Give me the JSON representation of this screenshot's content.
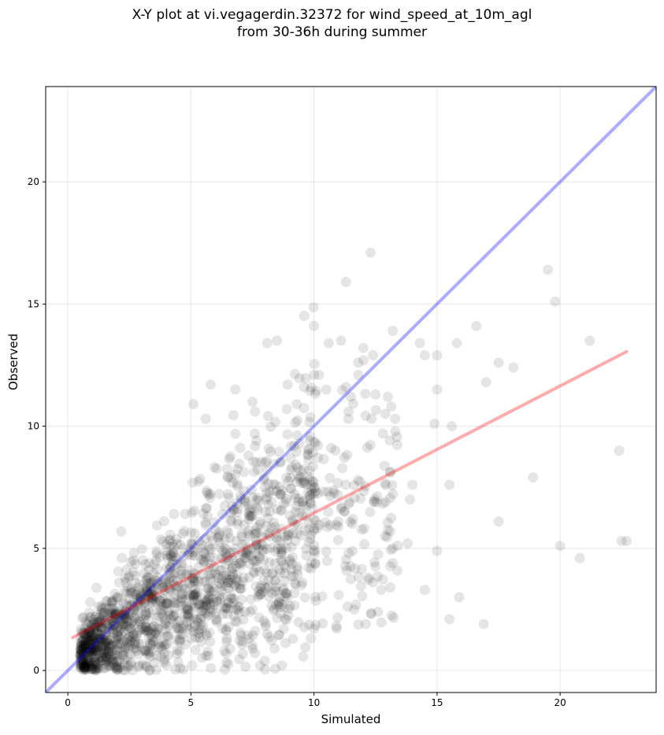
{
  "chart_data": {
    "type": "scatter",
    "title": "X-Y plot at vi.vegagerdin.32372 for wind_speed_at_10m_agl",
    "subtitle": "from 30-36h during summer",
    "xlabel": "Simulated",
    "ylabel": "Observed",
    "xlim": [
      -0.9,
      23.9
    ],
    "ylim": [
      -0.9,
      23.9
    ],
    "x_ticks": [
      0,
      5,
      10,
      15,
      20
    ],
    "y_ticks": [
      0,
      5,
      10,
      15,
      20
    ],
    "grid": true,
    "point_color": "#000000",
    "point_alpha": 0.1,
    "identity_line": {
      "color": "#0000ff",
      "alpha": 0.33,
      "from": [
        -0.9,
        -0.9
      ],
      "to": [
        23.9,
        23.9
      ]
    },
    "regression_line": {
      "color": "#ff0000",
      "alpha": 0.33,
      "from": [
        0.2,
        1.35
      ],
      "to": [
        22.7,
        13.05
      ]
    },
    "outlier_points": [
      [
        12.3,
        17.1
      ],
      [
        11.3,
        15.9
      ],
      [
        19.5,
        16.4
      ],
      [
        19.8,
        15.1
      ],
      [
        10.0,
        14.1
      ],
      [
        16.6,
        14.1
      ],
      [
        8.5,
        13.5
      ],
      [
        8.1,
        13.4
      ],
      [
        11.1,
        13.5
      ],
      [
        10.6,
        13.4
      ],
      [
        14.3,
        13.4
      ],
      [
        15.8,
        13.4
      ],
      [
        13.2,
        13.9
      ],
      [
        21.2,
        13.5
      ],
      [
        12.0,
        13.2
      ],
      [
        12.4,
        12.9
      ],
      [
        14.5,
        12.9
      ],
      [
        15.0,
        12.9
      ],
      [
        17.5,
        12.6
      ],
      [
        18.1,
        12.4
      ],
      [
        11.8,
        12.6
      ],
      [
        11.8,
        12.1
      ],
      [
        10.0,
        12.1
      ],
      [
        10.2,
        12.1
      ],
      [
        6.8,
        11.5
      ],
      [
        5.8,
        11.7
      ],
      [
        17.0,
        11.8
      ],
      [
        11.3,
        11.6
      ],
      [
        11.5,
        11.2
      ],
      [
        12.5,
        11.3
      ],
      [
        13.0,
        11.2
      ],
      [
        15.0,
        11.5
      ],
      [
        10.5,
        11.5
      ],
      [
        5.1,
        10.9
      ],
      [
        7.5,
        11.0
      ],
      [
        7.6,
        10.6
      ],
      [
        8.9,
        10.7
      ],
      [
        9.3,
        10.9
      ],
      [
        11.4,
        10.6
      ],
      [
        12.9,
        10.5
      ],
      [
        13.3,
        10.3
      ],
      [
        14.9,
        10.1
      ],
      [
        15.6,
        10.0
      ],
      [
        11.4,
        10.3
      ],
      [
        5.6,
        10.3
      ],
      [
        12.8,
        9.7
      ],
      [
        22.4,
        9.0
      ],
      [
        18.9,
        7.9
      ],
      [
        14.0,
        7.6
      ],
      [
        15.5,
        7.6
      ],
      [
        13.9,
        7.0
      ],
      [
        17.5,
        6.1
      ],
      [
        13.1,
        5.7
      ],
      [
        13.2,
        5.0
      ],
      [
        15.0,
        4.9
      ],
      [
        13.8,
        5.2
      ],
      [
        20.0,
        5.1
      ],
      [
        20.8,
        4.6
      ],
      [
        22.5,
        5.3
      ],
      [
        22.7,
        5.3
      ],
      [
        13.2,
        4.4
      ],
      [
        12.4,
        3.6
      ],
      [
        13.1,
        3.4
      ],
      [
        14.5,
        3.3
      ],
      [
        15.9,
        3.0
      ],
      [
        12.2,
        3.8
      ],
      [
        15.5,
        2.1
      ],
      [
        16.9,
        1.9
      ],
      [
        12.1,
        1.9
      ],
      [
        8.4,
        0.9
      ]
    ]
  }
}
